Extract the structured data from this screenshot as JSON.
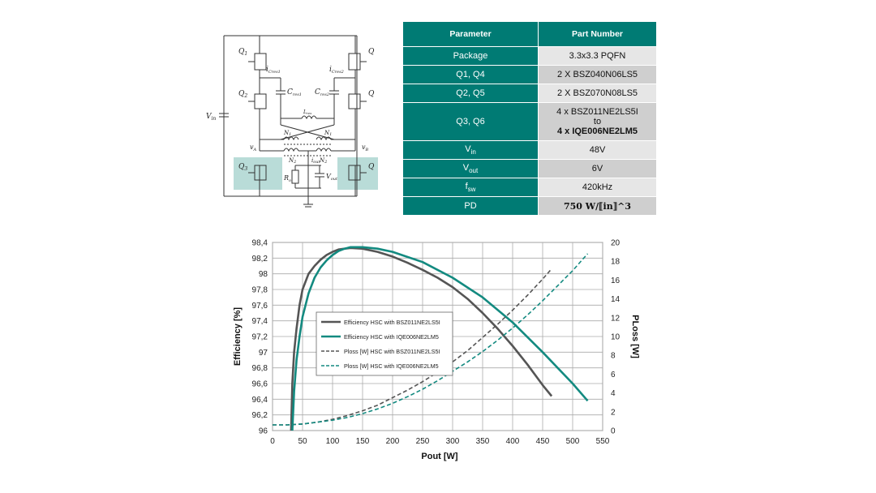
{
  "schematic": {
    "vin_label": "V",
    "vin_sub": "in",
    "q1": "Q",
    "q1_sub": "1",
    "q2": "Q",
    "q2_sub": "2",
    "q3": "Q",
    "q3_sub": "3",
    "q4": "Q",
    "q5": "Q",
    "q6": "Q",
    "icres1": "i",
    "icres1_sub": "Cres1",
    "icres2": "i",
    "icres2_sub": "Cres2",
    "cres1": "C",
    "cres1_sub": "res1",
    "cres2": "C",
    "cres2_sub": "res2",
    "lmid": "L",
    "lmid_sub": "res",
    "n1a": "N",
    "n1a_sub": "1",
    "n1b": "N",
    "n1b_sub": "1",
    "n2a": "N",
    "n2a_sub": "2",
    "n2b": "N",
    "n2b_sub": "2",
    "va": "v",
    "va_sub": "A",
    "vb": "v",
    "vb_sub": "B",
    "iout": "i",
    "iout_sub": "out",
    "ro": "R",
    "ro_sub": "o",
    "vout": "V",
    "vout_sub": "out",
    "colors": {
      "highlight": "#b9dcd8",
      "wire": "#333333"
    }
  },
  "table": {
    "header": {
      "param": "Parameter",
      "part": "Part Number"
    },
    "rows": [
      {
        "param": "Package",
        "value": "3.3x3.3 PQFN"
      },
      {
        "param": "Q1, Q4",
        "value": "2 X BSZ040N06LS5"
      },
      {
        "param": "Q2, Q5",
        "value": "2 X BSZ070N08LS5"
      },
      {
        "param": "Q3, Q6",
        "value_line1": "4 x BSZ011NE2LS5I",
        "value_line2": "to",
        "value_line3": "4 x IQE006NE2LM5"
      },
      {
        "param": "V",
        "param_sub": "in",
        "value": "48V"
      },
      {
        "param": "V",
        "param_sub": "out",
        "value": "6V"
      },
      {
        "param": "f",
        "param_sub": "sw",
        "value": "420kHz"
      },
      {
        "param": "PD",
        "value": "750 W/⟦in⟧^3"
      }
    ],
    "colors": {
      "header": "#007B74",
      "row_light": "#e6e6e6",
      "row_dark": "#cfcfcf"
    }
  },
  "chart_data": {
    "type": "line",
    "xlabel": "Pout [W]",
    "ylabel": "Efficiency [%]",
    "y2label": "PLoss [W]",
    "xlim": [
      0,
      550
    ],
    "ylim": [
      96,
      98.4
    ],
    "y2lim": [
      0,
      20
    ],
    "xticks": [
      "0",
      "50",
      "100",
      "150",
      "200",
      "250",
      "300",
      "350",
      "400",
      "450",
      "500",
      "550"
    ],
    "yticks": [
      "96",
      "96,2",
      "96,4",
      "96,6",
      "96,8",
      "97",
      "97,2",
      "97,4",
      "97,6",
      "97,8",
      "98",
      "98,2",
      "98,4"
    ],
    "y2ticks": [
      "0",
      "2",
      "4",
      "6",
      "8",
      "10",
      "12",
      "14",
      "16",
      "18",
      "20"
    ],
    "grid": true,
    "legend_position": "center-left",
    "series": [
      {
        "name": "Efficiency HSC with BSZ011NE2LS5I",
        "axis": "left",
        "color": "#555555",
        "style": "solid",
        "x": [
          31,
          33,
          36,
          40,
          45,
          50,
          60,
          70,
          80,
          90,
          100,
          110,
          120,
          130,
          150,
          175,
          200,
          225,
          250,
          275,
          300,
          325,
          350,
          375,
          400,
          425,
          450,
          465
        ],
        "y": [
          96.0,
          96.6,
          97.0,
          97.3,
          97.6,
          97.8,
          98.0,
          98.1,
          98.18,
          98.24,
          98.28,
          98.31,
          98.32,
          98.33,
          98.32,
          98.28,
          98.22,
          98.14,
          98.05,
          97.95,
          97.83,
          97.68,
          97.5,
          97.3,
          97.08,
          96.84,
          96.58,
          96.44
        ]
      },
      {
        "name": "Efficiency HSC with IQE006NE2LM5",
        "axis": "left",
        "color": "#138a80",
        "style": "solid",
        "x": [
          33,
          36,
          40,
          45,
          50,
          60,
          70,
          80,
          90,
          100,
          110,
          120,
          130,
          140,
          150,
          175,
          200,
          250,
          300,
          350,
          400,
          450,
          500,
          525
        ],
        "y": [
          96.0,
          96.5,
          96.9,
          97.2,
          97.45,
          97.75,
          97.95,
          98.08,
          98.17,
          98.24,
          98.29,
          98.32,
          98.34,
          98.34,
          98.34,
          98.32,
          98.28,
          98.15,
          97.95,
          97.7,
          97.38,
          97.0,
          96.6,
          96.38
        ]
      },
      {
        "name": "Ploss [W] HSC with BSZ011NE2LS5I",
        "axis": "right",
        "color": "#555555",
        "style": "dashed",
        "x": [
          0,
          25,
          50,
          75,
          100,
          125,
          150,
          175,
          200,
          225,
          250,
          275,
          300,
          325,
          350,
          375,
          400,
          425,
          450,
          465
        ],
        "y": [
          0.6,
          0.6,
          0.7,
          0.9,
          1.2,
          1.6,
          2.1,
          2.7,
          3.5,
          4.3,
          5.2,
          6.2,
          7.3,
          8.5,
          9.9,
          11.3,
          12.8,
          14.4,
          16.1,
          17.2
        ]
      },
      {
        "name": "Ploss [W] HSC with IQE006NE2LM5",
        "axis": "right",
        "color": "#138a80",
        "style": "dashed",
        "x": [
          0,
          25,
          50,
          75,
          100,
          125,
          150,
          175,
          200,
          225,
          250,
          275,
          300,
          325,
          350,
          375,
          400,
          425,
          450,
          475,
          500,
          525
        ],
        "y": [
          0.6,
          0.6,
          0.7,
          0.9,
          1.1,
          1.4,
          1.8,
          2.3,
          2.9,
          3.6,
          4.4,
          5.3,
          6.3,
          7.3,
          8.4,
          9.6,
          10.9,
          12.3,
          13.8,
          15.4,
          17.0,
          18.8
        ]
      }
    ]
  }
}
